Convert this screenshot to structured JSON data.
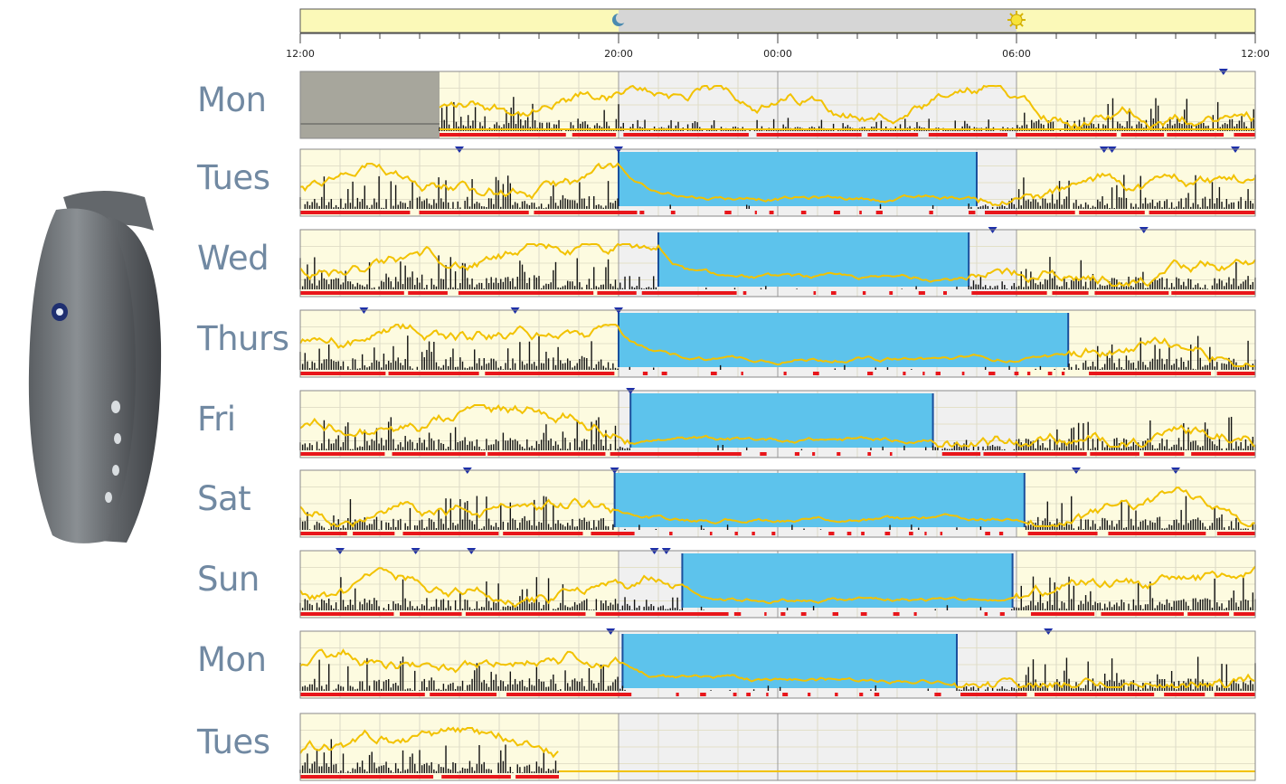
{
  "chart_data": {
    "type": "actigraphy-timeline",
    "time_axis": {
      "ticks": [
        {
          "hour": 0,
          "label": "12:00"
        },
        {
          "hour": 8,
          "label": "20:00"
        },
        {
          "hour": 12,
          "label": "00:00"
        },
        {
          "hour": 18,
          "label": "06:00"
        },
        {
          "hour": 24,
          "label": "12:00"
        }
      ],
      "span_hours": 24,
      "start_clock": "12:00",
      "night_span_hours": [
        8,
        18
      ],
      "sunset_hour": 8.0,
      "sunrise_hour": 18.0
    },
    "days": [
      {
        "label": "Mon",
        "recording_start": 3.5,
        "recording_end": 24,
        "sleep": [],
        "markers": [
          23.2
        ]
      },
      {
        "label": "Tues",
        "recording_start": 0,
        "recording_end": 24,
        "sleep": [
          [
            8.0,
            17.0
          ]
        ],
        "markers": [
          4.0,
          8.0,
          20.2,
          20.4,
          23.5
        ]
      },
      {
        "label": "Wed",
        "recording_start": 0,
        "recording_end": 24,
        "sleep": [
          [
            9.0,
            16.8
          ]
        ],
        "markers": [
          17.4,
          21.2
        ]
      },
      {
        "label": "Thurs",
        "recording_start": 0,
        "recording_end": 24,
        "sleep": [
          [
            8.0,
            19.3
          ]
        ],
        "markers": [
          1.6,
          5.4,
          8.0
        ]
      },
      {
        "label": "Fri",
        "recording_start": 0,
        "recording_end": 24,
        "sleep": [
          [
            8.3,
            15.9
          ]
        ],
        "markers": [
          8.3
        ]
      },
      {
        "label": "Sat",
        "recording_start": 0,
        "recording_end": 24,
        "sleep": [
          [
            7.9,
            18.2
          ]
        ],
        "markers": [
          4.2,
          7.9,
          19.5,
          22.0
        ]
      },
      {
        "label": "Sun",
        "recording_start": 0,
        "recording_end": 24,
        "sleep": [
          [
            9.6,
            17.9
          ]
        ],
        "markers": [
          1.0,
          2.9,
          4.3,
          8.9,
          9.2
        ]
      },
      {
        "label": "Mon",
        "recording_start": 0,
        "recording_end": 24,
        "sleep": [
          [
            8.1,
            16.5
          ]
        ],
        "markers": [
          7.8,
          18.8
        ]
      },
      {
        "label": "Tues",
        "recording_start": 0,
        "recording_end": 6.5,
        "sleep": [],
        "markers": []
      }
    ],
    "colors": {
      "day_background": "#fdfbe0",
      "night_background": "#f0f0f0",
      "sleep": "#5dc3ec",
      "sleep_edge": "#1a4f9c",
      "activity": "#111111",
      "light": "#f2c200",
      "wake_bar": "#e8161b",
      "marker": "#1d2fa8",
      "no_data": "#a7a69c",
      "label": "#7189a2"
    }
  }
}
